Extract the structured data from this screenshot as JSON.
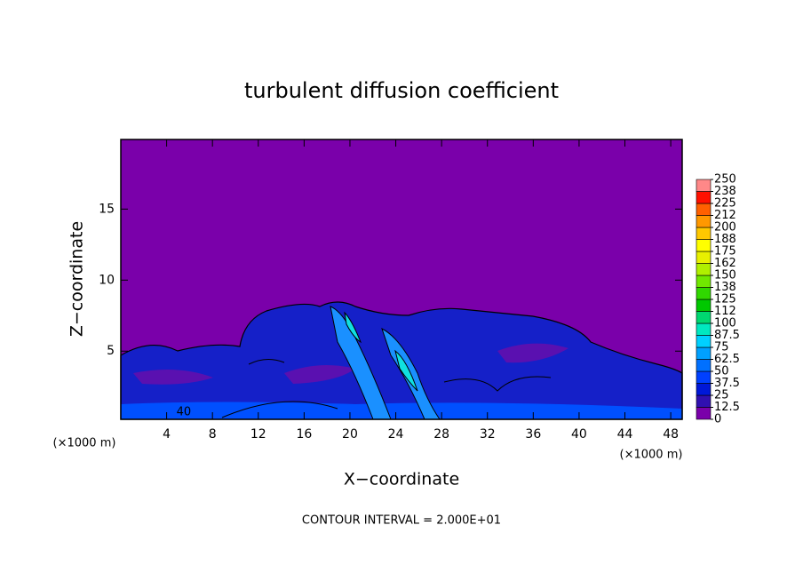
{
  "chart_data": {
    "type": "contour",
    "title": "turbulent diffusion coefficient",
    "xlabel": "X−coordinate",
    "ylabel": "Z−coordinate",
    "x_unit": "(×1000 m)",
    "y_unit": "(×1000 m)",
    "footnote": "CONTOUR INTERVAL = 2.000E+01",
    "annotations": [
      {
        "text": "40",
        "x": 5.5,
        "y": 0.7
      }
    ],
    "xlim": [
      0,
      49
    ],
    "xticks": [
      4,
      8,
      12,
      16,
      20,
      24,
      28,
      32,
      36,
      40,
      44,
      48
    ],
    "ylim": [
      0.2,
      19.9
    ],
    "yticks": [
      5,
      10,
      15
    ],
    "background_color": "#7a00aa",
    "colorbar": {
      "ticks": [
        0,
        12.5,
        25,
        37.5,
        50,
        62.5,
        75,
        87.5,
        100,
        {
          "value": 112.5,
          "label": "112"
        },
        125,
        {
          "value": 137.5,
          "label": "138"
        },
        150,
        {
          "value": 162.5,
          "label": "162"
        },
        175,
        {
          "value": 187.5,
          "label": "188"
        },
        200,
        {
          "value": 212.5,
          "label": "212"
        },
        225,
        {
          "value": 237.5,
          "label": "238"
        },
        250
      ],
      "colors": [
        "#7a00aa",
        "#3010b0",
        "#0018d8",
        "#0040ff",
        "#0070ff",
        "#00a0ff",
        "#00d0ff",
        "#00e8c0",
        "#00d870",
        "#00c800",
        "#30d800",
        "#70e800",
        "#b0f000",
        "#e8f000",
        "#ffff00",
        "#ffc800",
        "#ff9800",
        "#ff6000",
        "#ff1000",
        "#ff8888"
      ]
    }
  }
}
